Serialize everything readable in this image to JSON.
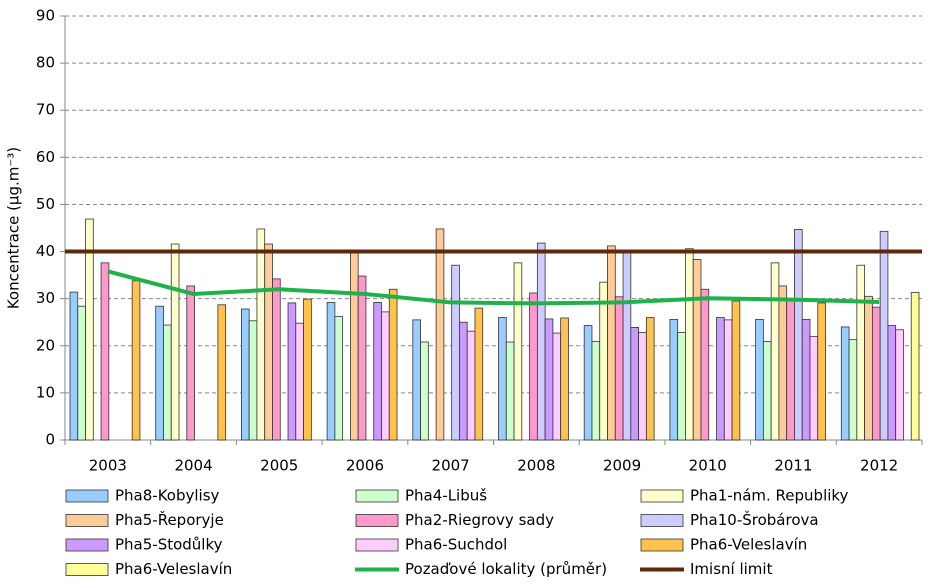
{
  "chart_data": {
    "type": "bar",
    "y_label": "Koncentrace (µg.m⁻³)",
    "categories": [
      "2003",
      "2004",
      "2005",
      "2006",
      "2007",
      "2008",
      "2009",
      "2010",
      "2011",
      "2012"
    ],
    "ylim": [
      0,
      90
    ],
    "yticks": [
      0,
      10,
      20,
      30,
      40,
      50,
      60,
      70,
      80,
      90
    ],
    "grid": true,
    "legend": "bottom",
    "series": [
      {
        "name": "Pha8-Kobylisy",
        "color": "#99ccff",
        "values": [
          31.4,
          28.4,
          27.8,
          29.2,
          25.5,
          26,
          24.3,
          25.6,
          25.6,
          24
        ]
      },
      {
        "name": "Pha4-Libuš",
        "color": "#ccffcc",
        "values": [
          28.4,
          24.4,
          25.3,
          26.2,
          20.8,
          20.8,
          20.9,
          22.8,
          20.9,
          21.3
        ]
      },
      {
        "name": "Pha1-nám. Republiky",
        "color": "#ffffcc",
        "values": [
          46.9,
          41.6,
          44.8,
          null,
          null,
          37.6,
          33.5,
          40.6,
          37.6,
          37.1
        ]
      },
      {
        "name": "Pha5-Řeporyje",
        "color": "#ffcc99",
        "values": [
          null,
          null,
          41.6,
          40,
          44.8,
          null,
          41.2,
          38.3,
          32.7,
          30.5
        ]
      },
      {
        "name": "Pha2-Riegrovy sady",
        "color": "#ff99cc",
        "values": [
          37.6,
          32.7,
          34.2,
          34.8,
          null,
          31.2,
          30.4,
          32,
          30,
          28.2
        ]
      },
      {
        "name": "Pha10-Šrobárova",
        "color": "#ccccff",
        "values": [
          null,
          null,
          null,
          null,
          37.1,
          41.8,
          40.3,
          null,
          44.7,
          44.3
        ]
      },
      {
        "name": "Pha5-Stodůlky",
        "color": "#cc99ff",
        "values": [
          null,
          null,
          29.1,
          29.2,
          25,
          25.7,
          23.9,
          26,
          25.6,
          24.3
        ]
      },
      {
        "name": "Pha6-Suchdol",
        "color": "#ffccff",
        "values": [
          null,
          null,
          24.8,
          27.2,
          23.1,
          22.7,
          22.8,
          25.5,
          22,
          23.4
        ]
      },
      {
        "name": "Pha6-Veleslavín",
        "color": "#ffc34d",
        "values": [
          33.8,
          28.7,
          29.9,
          32,
          28,
          25.9,
          26,
          29.5,
          29.1,
          null
        ]
      },
      {
        "name": "Pha6-Veleslavín",
        "color": "#ffff99",
        "values": [
          null,
          null,
          null,
          null,
          null,
          null,
          null,
          null,
          null,
          31.3
        ]
      },
      {
        "name": "Pozaďové lokality (průměr)",
        "type": "line",
        "color": "#1db24a",
        "values": [
          35.8,
          31,
          32,
          31,
          29.2,
          29,
          29.2,
          30.1,
          29.8,
          29.3
        ]
      },
      {
        "name": "Imisní limit",
        "type": "line",
        "color": "#5c2a0a",
        "values": [
          40,
          40,
          40,
          40,
          40,
          40,
          40,
          40,
          40,
          40
        ]
      }
    ]
  }
}
